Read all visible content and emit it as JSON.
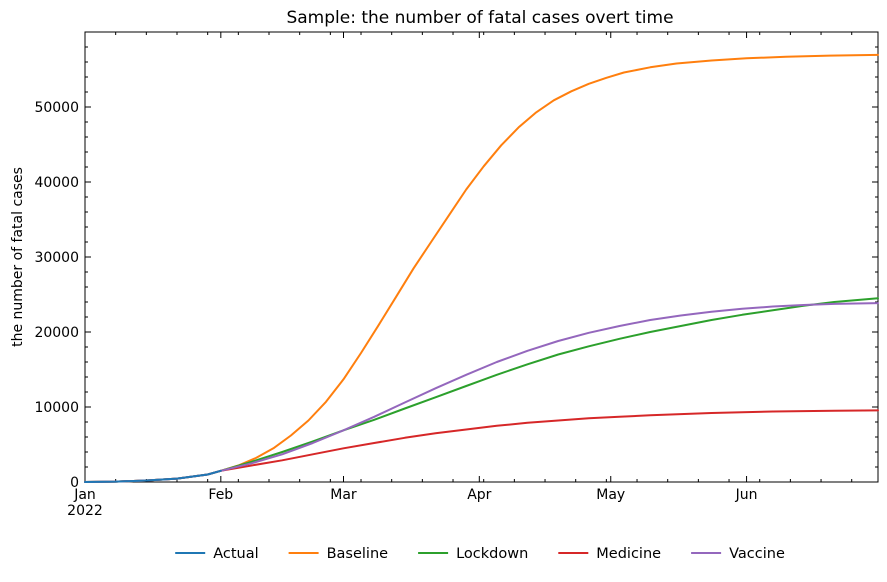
{
  "chart_data": {
    "type": "line",
    "title": "Sample: the number of fatal cases overt time",
    "xlabel": "",
    "ylabel": "the number of fatal cases",
    "x_tick_labels": [
      "Jan",
      "Feb",
      "Mar",
      "Apr",
      "May",
      "Jun"
    ],
    "x_year_label": "2022",
    "x_ticks": [
      "2022-01-01",
      "2022-02-01",
      "2022-03-01",
      "2022-04-01",
      "2022-05-01",
      "2022-06-01"
    ],
    "xlim": [
      "2022-01-01",
      "2022-07-01"
    ],
    "y_ticks": [
      0,
      10000,
      20000,
      30000,
      40000,
      50000
    ],
    "y_tick_labels": [
      "0",
      "10000",
      "20000",
      "30000",
      "40000",
      "50000"
    ],
    "ylim": [
      0,
      60000
    ],
    "grid": false,
    "legend_position": "bottom",
    "series": [
      {
        "name": "Actual",
        "color": "#1f77b4",
        "points": [
          [
            "2022-01-01",
            0
          ],
          [
            "2022-01-08",
            60
          ],
          [
            "2022-01-15",
            200
          ],
          [
            "2022-01-22",
            450
          ],
          [
            "2022-01-29",
            1000
          ],
          [
            "2022-02-01",
            1500
          ]
        ]
      },
      {
        "name": "Baseline",
        "color": "#ff7f0e",
        "points": [
          [
            "2022-01-01",
            0
          ],
          [
            "2022-01-08",
            60
          ],
          [
            "2022-01-15",
            200
          ],
          [
            "2022-01-22",
            450
          ],
          [
            "2022-01-29",
            1000
          ],
          [
            "2022-02-01",
            1500
          ],
          [
            "2022-02-05",
            2200
          ],
          [
            "2022-02-09",
            3200
          ],
          [
            "2022-02-13",
            4500
          ],
          [
            "2022-02-17",
            6200
          ],
          [
            "2022-02-21",
            8200
          ],
          [
            "2022-02-25",
            10700
          ],
          [
            "2022-03-01",
            13700
          ],
          [
            "2022-03-05",
            17200
          ],
          [
            "2022-03-09",
            20900
          ],
          [
            "2022-03-13",
            24700
          ],
          [
            "2022-03-17",
            28500
          ],
          [
            "2022-03-21",
            32000
          ],
          [
            "2022-03-25",
            35500
          ],
          [
            "2022-03-29",
            39000
          ],
          [
            "2022-04-02",
            42100
          ],
          [
            "2022-04-06",
            44900
          ],
          [
            "2022-04-10",
            47300
          ],
          [
            "2022-04-14",
            49300
          ],
          [
            "2022-04-18",
            50900
          ],
          [
            "2022-04-22",
            52100
          ],
          [
            "2022-04-26",
            53100
          ],
          [
            "2022-04-30",
            53900
          ],
          [
            "2022-05-04",
            54600
          ],
          [
            "2022-05-10",
            55300
          ],
          [
            "2022-05-16",
            55800
          ],
          [
            "2022-05-24",
            56200
          ],
          [
            "2022-06-01",
            56500
          ],
          [
            "2022-06-10",
            56700
          ],
          [
            "2022-06-20",
            56850
          ],
          [
            "2022-07-01",
            56950
          ]
        ]
      },
      {
        "name": "Lockdown",
        "color": "#2ca02c",
        "points": [
          [
            "2022-01-01",
            0
          ],
          [
            "2022-01-08",
            60
          ],
          [
            "2022-01-15",
            200
          ],
          [
            "2022-01-22",
            450
          ],
          [
            "2022-01-29",
            1000
          ],
          [
            "2022-02-01",
            1500
          ],
          [
            "2022-02-08",
            2700
          ],
          [
            "2022-02-15",
            4000
          ],
          [
            "2022-02-22",
            5400
          ],
          [
            "2022-03-01",
            6900
          ],
          [
            "2022-03-08",
            8300
          ],
          [
            "2022-03-15",
            9800
          ],
          [
            "2022-03-22",
            11300
          ],
          [
            "2022-03-29",
            12800
          ],
          [
            "2022-04-05",
            14300
          ],
          [
            "2022-04-12",
            15700
          ],
          [
            "2022-04-19",
            17000
          ],
          [
            "2022-04-26",
            18100
          ],
          [
            "2022-05-03",
            19100
          ],
          [
            "2022-05-10",
            20000
          ],
          [
            "2022-05-17",
            20800
          ],
          [
            "2022-05-24",
            21600
          ],
          [
            "2022-05-31",
            22300
          ],
          [
            "2022-06-07",
            22900
          ],
          [
            "2022-06-14",
            23500
          ],
          [
            "2022-06-21",
            24000
          ],
          [
            "2022-07-01",
            24500
          ]
        ]
      },
      {
        "name": "Medicine",
        "color": "#d62728",
        "points": [
          [
            "2022-01-01",
            0
          ],
          [
            "2022-01-08",
            60
          ],
          [
            "2022-01-15",
            200
          ],
          [
            "2022-01-22",
            450
          ],
          [
            "2022-01-29",
            1000
          ],
          [
            "2022-02-01",
            1500
          ],
          [
            "2022-02-08",
            2200
          ],
          [
            "2022-02-15",
            2900
          ],
          [
            "2022-02-22",
            3700
          ],
          [
            "2022-03-01",
            4500
          ],
          [
            "2022-03-08",
            5200
          ],
          [
            "2022-03-15",
            5900
          ],
          [
            "2022-03-22",
            6500
          ],
          [
            "2022-03-29",
            7000
          ],
          [
            "2022-04-05",
            7500
          ],
          [
            "2022-04-12",
            7900
          ],
          [
            "2022-04-19",
            8200
          ],
          [
            "2022-04-26",
            8500
          ],
          [
            "2022-05-03",
            8700
          ],
          [
            "2022-05-10",
            8900
          ],
          [
            "2022-05-17",
            9050
          ],
          [
            "2022-05-24",
            9200
          ],
          [
            "2022-05-31",
            9300
          ],
          [
            "2022-06-07",
            9400
          ],
          [
            "2022-06-14",
            9450
          ],
          [
            "2022-06-21",
            9500
          ],
          [
            "2022-07-01",
            9550
          ]
        ]
      },
      {
        "name": "Vaccine",
        "color": "#9467bd",
        "points": [
          [
            "2022-01-01",
            0
          ],
          [
            "2022-01-08",
            60
          ],
          [
            "2022-01-15",
            200
          ],
          [
            "2022-01-22",
            450
          ],
          [
            "2022-01-29",
            1000
          ],
          [
            "2022-02-01",
            1500
          ],
          [
            "2022-02-08",
            2500
          ],
          [
            "2022-02-15",
            3700
          ],
          [
            "2022-02-22",
            5200
          ],
          [
            "2022-03-01",
            6900
          ],
          [
            "2022-03-08",
            8700
          ],
          [
            "2022-03-15",
            10600
          ],
          [
            "2022-03-22",
            12500
          ],
          [
            "2022-03-29",
            14300
          ],
          [
            "2022-04-05",
            16000
          ],
          [
            "2022-04-12",
            17500
          ],
          [
            "2022-04-19",
            18800
          ],
          [
            "2022-04-26",
            19900
          ],
          [
            "2022-05-03",
            20800
          ],
          [
            "2022-05-10",
            21600
          ],
          [
            "2022-05-17",
            22200
          ],
          [
            "2022-05-24",
            22700
          ],
          [
            "2022-05-31",
            23100
          ],
          [
            "2022-06-07",
            23400
          ],
          [
            "2022-06-14",
            23600
          ],
          [
            "2022-06-21",
            23750
          ],
          [
            "2022-07-01",
            23850
          ]
        ]
      }
    ]
  }
}
